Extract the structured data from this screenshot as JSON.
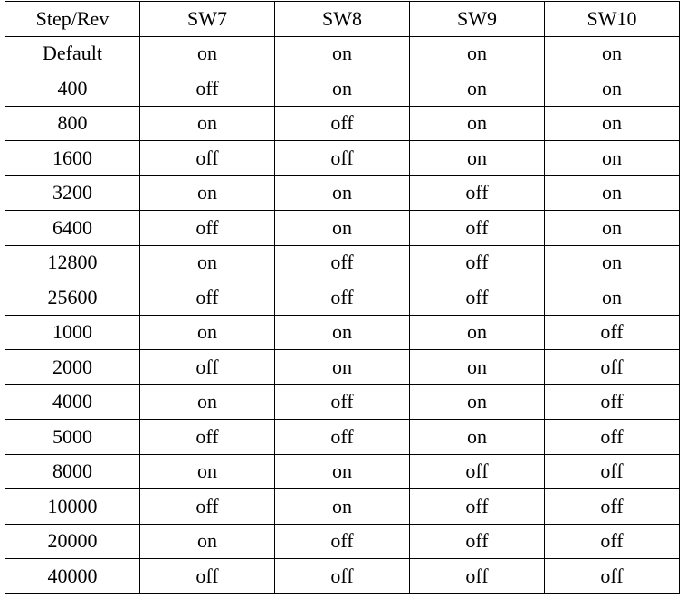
{
  "table": {
    "headers": [
      "Step/Rev",
      "SW7",
      "SW8",
      "SW9",
      "SW10"
    ],
    "rows": [
      [
        "Default",
        "on",
        "on",
        "on",
        "on"
      ],
      [
        "400",
        "off",
        "on",
        "on",
        "on"
      ],
      [
        "800",
        "on",
        "off",
        "on",
        "on"
      ],
      [
        "1600",
        "off",
        "off",
        "on",
        "on"
      ],
      [
        "3200",
        "on",
        "on",
        "off",
        "on"
      ],
      [
        "6400",
        "off",
        "on",
        "off",
        "on"
      ],
      [
        "12800",
        "on",
        "off",
        "off",
        "on"
      ],
      [
        "25600",
        "off",
        "off",
        "off",
        "on"
      ],
      [
        "1000",
        "on",
        "on",
        "on",
        "off"
      ],
      [
        "2000",
        "off",
        "on",
        "on",
        "off"
      ],
      [
        "4000",
        "on",
        "off",
        "on",
        "off"
      ],
      [
        "5000",
        "off",
        "off",
        "on",
        "off"
      ],
      [
        "8000",
        "on",
        "on",
        "off",
        "off"
      ],
      [
        "10000",
        "off",
        "on",
        "off",
        "off"
      ],
      [
        "20000",
        "on",
        "off",
        "off",
        "off"
      ],
      [
        "40000",
        "off",
        "off",
        "off",
        "off"
      ]
    ]
  }
}
